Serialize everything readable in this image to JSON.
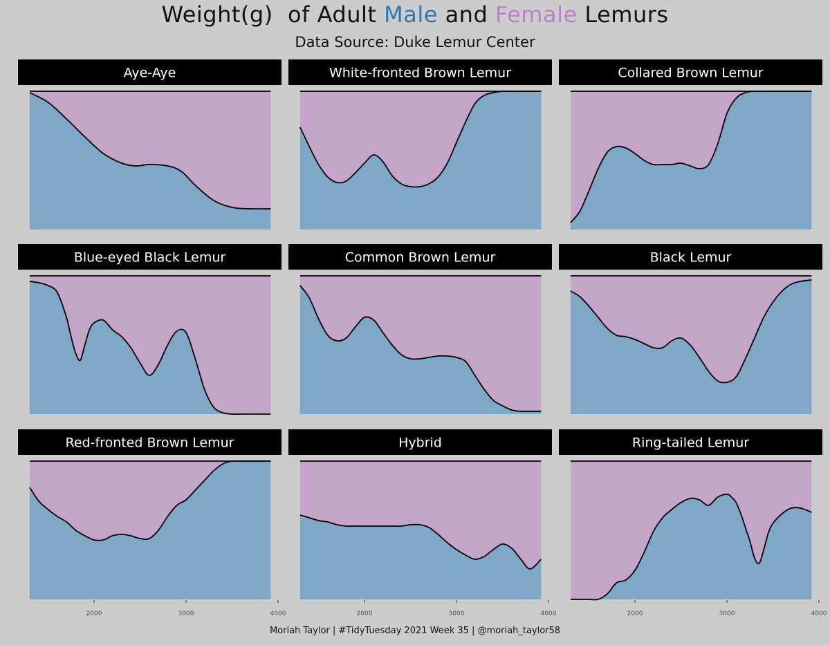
{
  "title": {
    "part1": "Weight(g)  of Adult ",
    "male": "Male",
    "part2": " and ",
    "female": "Female",
    "part3": " Lemurs",
    "male_color": "#2f78b7",
    "female_color": "#bb7fcc"
  },
  "subtitle": "Data Source: Duke Lemur Center",
  "caption": "Moriah Taylor | #TidyTuesday 2021 Week 35 | @moriah_taylor58",
  "colors": {
    "background": "#cccccc",
    "male_fill": "#7fa7c6",
    "female_fill": "#c5a4c9",
    "strip_fill": "#000000",
    "strip_text": "#ffffff",
    "line": "#000000"
  },
  "chart_data": {
    "type": "area",
    "subtype": "filled density (position fill) faceted by species",
    "x_ticks": [
      2000,
      3000,
      4000
    ],
    "xlim": [
      1300,
      3920
    ],
    "ylim": [
      0,
      1
    ],
    "grid": false,
    "series_names": [
      "Male",
      "Female"
    ],
    "panels": [
      {
        "name": "Aye-Aye",
        "x": [
          1300,
          1500,
          1700,
          1900,
          2100,
          2300,
          2450,
          2600,
          2800,
          2950,
          3100,
          3300,
          3500,
          3700,
          3920
        ],
        "male_share": [
          0.99,
          0.92,
          0.8,
          0.67,
          0.55,
          0.48,
          0.46,
          0.47,
          0.46,
          0.42,
          0.32,
          0.21,
          0.16,
          0.15,
          0.15
        ]
      },
      {
        "name": "White-fronted  Brown Lemur",
        "x": [
          1300,
          1400,
          1500,
          1600,
          1700,
          1800,
          1900,
          2000,
          2100,
          2200,
          2300,
          2400,
          2500,
          2600,
          2700,
          2800,
          2900,
          3000,
          3100,
          3200,
          3300,
          3400,
          3500,
          3600,
          3700,
          3920
        ],
        "male_share": [
          0.74,
          0.6,
          0.47,
          0.38,
          0.34,
          0.35,
          0.41,
          0.48,
          0.54,
          0.49,
          0.39,
          0.33,
          0.31,
          0.31,
          0.33,
          0.38,
          0.48,
          0.63,
          0.78,
          0.91,
          0.97,
          0.99,
          1.0,
          1.0,
          1.0,
          1.0
        ]
      },
      {
        "name": "Collared Brown Lemur",
        "x": [
          1300,
          1400,
          1500,
          1600,
          1700,
          1800,
          1900,
          2000,
          2100,
          2200,
          2300,
          2400,
          2500,
          2600,
          2700,
          2800,
          2900,
          3000,
          3100,
          3200,
          3300,
          3400,
          3500,
          3600,
          3700,
          3920
        ],
        "male_share": [
          0.05,
          0.13,
          0.28,
          0.44,
          0.56,
          0.6,
          0.59,
          0.55,
          0.5,
          0.47,
          0.47,
          0.47,
          0.48,
          0.46,
          0.44,
          0.47,
          0.62,
          0.84,
          0.95,
          0.99,
          1.0,
          1.0,
          1.0,
          1.0,
          1.0,
          1.0
        ]
      },
      {
        "name": "Blue-eyed  Black Lemur",
        "x": [
          1300,
          1400,
          1500,
          1600,
          1700,
          1750,
          1800,
          1850,
          1900,
          1950,
          2000,
          2100,
          2200,
          2300,
          2400,
          2500,
          2600,
          2700,
          2800,
          2900,
          3000,
          3100,
          3200,
          3300,
          3400,
          3500,
          3600,
          3700,
          3920
        ],
        "male_share": [
          0.96,
          0.95,
          0.93,
          0.88,
          0.7,
          0.56,
          0.44,
          0.39,
          0.5,
          0.61,
          0.66,
          0.68,
          0.61,
          0.56,
          0.48,
          0.37,
          0.28,
          0.36,
          0.5,
          0.6,
          0.59,
          0.4,
          0.18,
          0.05,
          0.01,
          0.0,
          0.0,
          0.0,
          0.0
        ]
      },
      {
        "name": "Common  Brown Lemur",
        "x": [
          1300,
          1400,
          1500,
          1600,
          1700,
          1800,
          1900,
          2000,
          2100,
          2200,
          2300,
          2400,
          2500,
          2600,
          2700,
          2800,
          2900,
          3000,
          3100,
          3200,
          3300,
          3400,
          3500,
          3600,
          3700,
          3920
        ],
        "male_share": [
          0.93,
          0.84,
          0.69,
          0.57,
          0.53,
          0.55,
          0.63,
          0.7,
          0.68,
          0.59,
          0.5,
          0.43,
          0.4,
          0.4,
          0.41,
          0.42,
          0.42,
          0.41,
          0.38,
          0.28,
          0.18,
          0.1,
          0.06,
          0.03,
          0.02,
          0.02
        ]
      },
      {
        "name": "Black Lemur",
        "x": [
          1300,
          1400,
          1500,
          1600,
          1700,
          1800,
          1900,
          2000,
          2100,
          2200,
          2300,
          2400,
          2500,
          2600,
          2700,
          2800,
          2900,
          3000,
          3100,
          3200,
          3300,
          3400,
          3500,
          3600,
          3700,
          3800,
          3920
        ],
        "male_share": [
          0.89,
          0.85,
          0.78,
          0.7,
          0.62,
          0.57,
          0.56,
          0.54,
          0.51,
          0.48,
          0.48,
          0.53,
          0.55,
          0.5,
          0.41,
          0.31,
          0.24,
          0.23,
          0.27,
          0.4,
          0.55,
          0.7,
          0.81,
          0.89,
          0.94,
          0.96,
          0.97
        ]
      },
      {
        "name": "Red-fronted  Brown Lemur",
        "x": [
          1300,
          1400,
          1500,
          1600,
          1700,
          1800,
          1900,
          2000,
          2100,
          2200,
          2300,
          2400,
          2500,
          2600,
          2700,
          2800,
          2900,
          3000,
          3100,
          3200,
          3300,
          3400,
          3500,
          3600,
          3700,
          3800,
          3920
        ],
        "male_share": [
          0.81,
          0.71,
          0.65,
          0.6,
          0.56,
          0.5,
          0.46,
          0.43,
          0.43,
          0.46,
          0.47,
          0.46,
          0.44,
          0.44,
          0.5,
          0.6,
          0.68,
          0.72,
          0.79,
          0.86,
          0.93,
          0.98,
          1.0,
          1.0,
          1.0,
          1.0,
          1.0
        ]
      },
      {
        "name": "Hybrid",
        "x": [
          1300,
          1400,
          1500,
          1600,
          1700,
          1800,
          1900,
          2000,
          2100,
          2200,
          2300,
          2400,
          2500,
          2600,
          2700,
          2800,
          2900,
          3000,
          3100,
          3200,
          3300,
          3400,
          3500,
          3600,
          3700,
          3800,
          3920
        ],
        "male_share": [
          0.61,
          0.59,
          0.57,
          0.56,
          0.54,
          0.53,
          0.53,
          0.53,
          0.53,
          0.53,
          0.53,
          0.53,
          0.54,
          0.54,
          0.52,
          0.47,
          0.41,
          0.36,
          0.32,
          0.29,
          0.31,
          0.36,
          0.4,
          0.37,
          0.29,
          0.22,
          0.29
        ]
      },
      {
        "name": "Ring-tailed   Lemur",
        "x": [
          1300,
          1400,
          1500,
          1600,
          1700,
          1800,
          1900,
          2000,
          2100,
          2200,
          2300,
          2400,
          2500,
          2600,
          2700,
          2800,
          2900,
          3000,
          3050,
          3100,
          3150,
          3200,
          3250,
          3300,
          3350,
          3400,
          3450,
          3500,
          3600,
          3700,
          3800,
          3920
        ],
        "male_share": [
          0.0,
          0.0,
          0.0,
          0.0,
          0.04,
          0.12,
          0.14,
          0.21,
          0.34,
          0.49,
          0.59,
          0.65,
          0.7,
          0.73,
          0.72,
          0.68,
          0.74,
          0.76,
          0.74,
          0.7,
          0.62,
          0.52,
          0.42,
          0.3,
          0.26,
          0.36,
          0.48,
          0.55,
          0.62,
          0.66,
          0.66,
          0.63
        ]
      }
    ]
  }
}
